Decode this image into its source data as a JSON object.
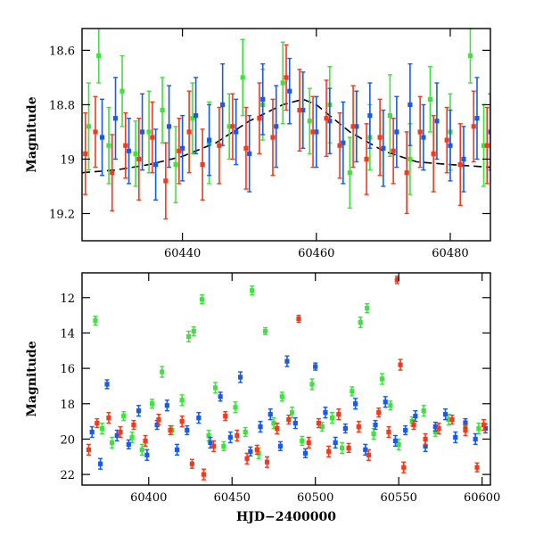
{
  "chart_data": [
    {
      "type": "scatter",
      "panel": "top",
      "title": "",
      "xlabel": "",
      "ylabel": "Magnitude",
      "xlim": [
        60425,
        60486
      ],
      "ylim": [
        19.3,
        18.52
      ],
      "y_inverted": true,
      "grid": false,
      "xticks": [
        60440,
        60460,
        60480
      ],
      "yticks": [
        18.6,
        18.8,
        19,
        19.2
      ],
      "colors": {
        "green": "#3fe23f",
        "blue": "#1a5ae8",
        "red": "#f23a1e",
        "model": "#000000"
      },
      "model_curve": {
        "x": [
          60425,
          60430,
          60435,
          60440,
          60445,
          60450,
          60455,
          60458,
          60460,
          60462,
          60465,
          60470,
          60475,
          60480,
          60486
        ],
        "y": [
          19.05,
          19.04,
          19.02,
          18.99,
          18.94,
          18.86,
          18.8,
          18.78,
          18.8,
          18.84,
          18.9,
          18.97,
          19.01,
          19.02,
          19.03
        ]
      },
      "series": [
        {
          "color": "green",
          "x": [
            60426,
            60427.5,
            60429,
            60431,
            60433,
            60435,
            60437,
            60439,
            60441.5,
            60444,
            60447,
            60449,
            60452,
            60455,
            60459,
            60462,
            60465,
            60468,
            60471,
            60474,
            60477,
            60480,
            60483,
            60485
          ],
          "y": [
            18.88,
            18.62,
            18.95,
            18.75,
            18.98,
            18.9,
            18.82,
            19.02,
            18.85,
            18.94,
            18.88,
            18.7,
            18.8,
            18.72,
            18.86,
            18.8,
            19.05,
            18.92,
            18.84,
            19.0,
            18.78,
            18.9,
            18.62,
            18.95
          ],
          "err": [
            0.16,
            0.1,
            0.14,
            0.13,
            0.12,
            0.15,
            0.12,
            0.14,
            0.13,
            0.15,
            0.12,
            0.14,
            0.13,
            0.15,
            0.12,
            0.14,
            0.13,
            0.12,
            0.15,
            0.13,
            0.12,
            0.14,
            0.1,
            0.15
          ]
        },
        {
          "color": "blue",
          "x": [
            60428,
            60430,
            60432,
            60434,
            60436,
            60438,
            60440,
            60442,
            60444,
            60446,
            60448,
            60450,
            60452,
            60454,
            60456,
            60458,
            60460,
            60462,
            60464,
            60466,
            60468,
            60470,
            60472,
            60474,
            60476,
            60478,
            60480,
            60482,
            60484,
            60486
          ],
          "y": [
            18.92,
            18.85,
            18.97,
            18.9,
            19.02,
            18.88,
            18.96,
            18.84,
            18.93,
            18.8,
            18.9,
            18.98,
            18.78,
            18.88,
            18.75,
            18.82,
            18.9,
            18.86,
            18.94,
            18.88,
            18.84,
            18.96,
            18.9,
            18.8,
            18.92,
            18.86,
            18.95,
            19.0,
            18.85,
            18.9
          ],
          "err": [
            0.14,
            0.15,
            0.12,
            0.14,
            0.13,
            0.15,
            0.12,
            0.14,
            0.13,
            0.15,
            0.12,
            0.14,
            0.13,
            0.15,
            0.12,
            0.14,
            0.13,
            0.12,
            0.15,
            0.13,
            0.12,
            0.14,
            0.13,
            0.15,
            0.12,
            0.14,
            0.13,
            0.12,
            0.15,
            0.14
          ]
        },
        {
          "color": "red",
          "x": [
            60425.5,
            60427,
            60429.5,
            60431.5,
            60433.5,
            60435.5,
            60437.5,
            60439.5,
            60441,
            60443,
            60445.5,
            60447.5,
            60449.5,
            60451.5,
            60453.5,
            60455.5,
            60457.5,
            60459.5,
            60461.5,
            60463.5,
            60465.5,
            60467.5,
            60469.5,
            60471.5,
            60473.5,
            60475.5,
            60477.5,
            60479.5,
            60481.5,
            60483.5,
            60485.5
          ],
          "y": [
            18.98,
            18.9,
            19.05,
            18.95,
            19.0,
            18.92,
            19.08,
            18.97,
            18.9,
            19.02,
            18.95,
            18.88,
            18.96,
            18.85,
            18.92,
            18.7,
            18.82,
            18.9,
            18.85,
            18.95,
            18.88,
            19.0,
            18.92,
            18.97,
            19.05,
            18.9,
            18.98,
            18.93,
            19.02,
            18.88,
            18.95
          ],
          "err": [
            0.15,
            0.13,
            0.14,
            0.12,
            0.15,
            0.13,
            0.14,
            0.12,
            0.15,
            0.13,
            0.14,
            0.12,
            0.15,
            0.13,
            0.14,
            0.12,
            0.15,
            0.13,
            0.14,
            0.12,
            0.15,
            0.13,
            0.14,
            0.12,
            0.15,
            0.13,
            0.14,
            0.12,
            0.15,
            0.13,
            0.14
          ]
        }
      ]
    },
    {
      "type": "scatter",
      "panel": "bottom",
      "title": "",
      "xlabel": "HJD−2400000",
      "ylabel": "Magnitude",
      "xlim": [
        60360,
        60605
      ],
      "ylim": [
        22.6,
        10.6
      ],
      "y_inverted": true,
      "grid": false,
      "xticks": [
        60400,
        60450,
        60500,
        60550,
        60600
      ],
      "yticks": [
        12,
        14,
        16,
        18,
        20,
        22
      ],
      "colors": {
        "green": "#3fe23f",
        "blue": "#1a5ae8",
        "red": "#f23a1e"
      },
      "series": [
        {
          "color": "green",
          "x": [
            60368,
            60372,
            60378,
            60385,
            60390,
            60396,
            60402,
            60408,
            60414,
            60420,
            60424,
            60427,
            60432,
            60436,
            60440,
            60445,
            60452,
            60458,
            60462,
            60466,
            60470,
            60475,
            60480,
            60486,
            60492,
            60498,
            60504,
            60510,
            60516,
            60522,
            60527,
            60531,
            60535,
            60540,
            60545,
            60550,
            60558,
            60565,
            60572,
            60580,
            60590,
            60598
          ],
          "y": [
            13.3,
            19.4,
            20.2,
            18.7,
            19.9,
            20.6,
            18.0,
            16.2,
            19.5,
            17.8,
            14.2,
            13.9,
            12.1,
            19.8,
            17.1,
            20.4,
            18.2,
            19.6,
            11.6,
            20.8,
            13.9,
            19.1,
            17.6,
            18.5,
            20.1,
            16.9,
            19.3,
            18.8,
            20.5,
            17.3,
            13.4,
            12.6,
            19.7,
            16.6,
            18.1,
            20.3,
            19.0,
            18.4,
            19.6,
            18.9,
            19.2,
            19.4
          ],
          "err": [
            0.25,
            0.3,
            0.3,
            0.25,
            0.3,
            0.3,
            0.25,
            0.3,
            0.25,
            0.3,
            0.3,
            0.25,
            0.25,
            0.3,
            0.3,
            0.25,
            0.3,
            0.25,
            0.25,
            0.3,
            0.2,
            0.3,
            0.25,
            0.3,
            0.25,
            0.3,
            0.25,
            0.3,
            0.3,
            0.25,
            0.3,
            0.25,
            0.3,
            0.3,
            0.25,
            0.3,
            0.25,
            0.3,
            0.25,
            0.3,
            0.25,
            0.3
          ]
        },
        {
          "color": "blue",
          "x": [
            60366,
            60371,
            60375,
            60381,
            60388,
            60394,
            60399,
            60405,
            60411,
            60417,
            60423,
            60430,
            60437,
            60443,
            60449,
            60455,
            60461,
            60467,
            60473,
            60479,
            60483,
            60488,
            60494,
            60500,
            60506,
            60512,
            60518,
            60524,
            60530,
            60536,
            60542,
            60548,
            60554,
            60560,
            60566,
            60572,
            60578,
            60584,
            60590,
            60596,
            60602
          ],
          "y": [
            19.6,
            21.4,
            16.9,
            19.8,
            20.3,
            18.4,
            20.9,
            19.2,
            18.1,
            20.6,
            19.5,
            18.8,
            20.2,
            17.6,
            19.9,
            16.5,
            20.7,
            19.3,
            18.6,
            20.4,
            15.6,
            19.1,
            20.8,
            15.9,
            18.5,
            20.2,
            19.4,
            18.0,
            20.6,
            19.2,
            17.9,
            20.1,
            19.5,
            18.7,
            20.4,
            19.3,
            18.6,
            19.9,
            19.1,
            20.0,
            19.4
          ],
          "err": [
            0.3,
            0.3,
            0.25,
            0.3,
            0.25,
            0.3,
            0.3,
            0.25,
            0.3,
            0.3,
            0.25,
            0.3,
            0.3,
            0.25,
            0.3,
            0.3,
            0.25,
            0.3,
            0.3,
            0.25,
            0.3,
            0.3,
            0.25,
            0.2,
            0.3,
            0.3,
            0.25,
            0.3,
            0.3,
            0.25,
            0.3,
            0.3,
            0.25,
            0.3,
            0.3,
            0.25,
            0.3,
            0.3,
            0.25,
            0.3,
            0.25
          ]
        },
        {
          "color": "red",
          "x": [
            60364,
            60369,
            60376,
            60383,
            60391,
            60398,
            60406,
            60413,
            60420,
            60426,
            60433,
            60439,
            60446,
            60453,
            60459,
            60465,
            60471,
            60477,
            60484,
            60490,
            60496,
            60502,
            60508,
            60514,
            60520,
            60526,
            60532,
            60538,
            60544,
            60549,
            60551,
            60553,
            60559,
            60566,
            60574,
            60582,
            60590,
            60597,
            60601
          ],
          "y": [
            20.6,
            19.1,
            18.8,
            19.6,
            19.2,
            20.1,
            18.9,
            19.5,
            19.0,
            21.4,
            22.0,
            20.4,
            18.7,
            19.8,
            21.1,
            20.6,
            21.3,
            19.4,
            18.9,
            13.2,
            20.2,
            19.1,
            20.7,
            18.6,
            20.5,
            19.3,
            20.9,
            18.5,
            19.6,
            11.0,
            15.8,
            21.6,
            19.2,
            20.0,
            19.4,
            18.9,
            19.5,
            21.6,
            19.2
          ],
          "err": [
            0.3,
            0.25,
            0.3,
            0.3,
            0.25,
            0.3,
            0.3,
            0.25,
            0.3,
            0.25,
            0.3,
            0.3,
            0.25,
            0.3,
            0.3,
            0.25,
            0.3,
            0.3,
            0.25,
            0.2,
            0.3,
            0.25,
            0.3,
            0.3,
            0.25,
            0.3,
            0.3,
            0.25,
            0.3,
            0.2,
            0.3,
            0.3,
            0.25,
            0.3,
            0.3,
            0.25,
            0.3,
            0.25,
            0.3
          ]
        }
      ]
    }
  ]
}
